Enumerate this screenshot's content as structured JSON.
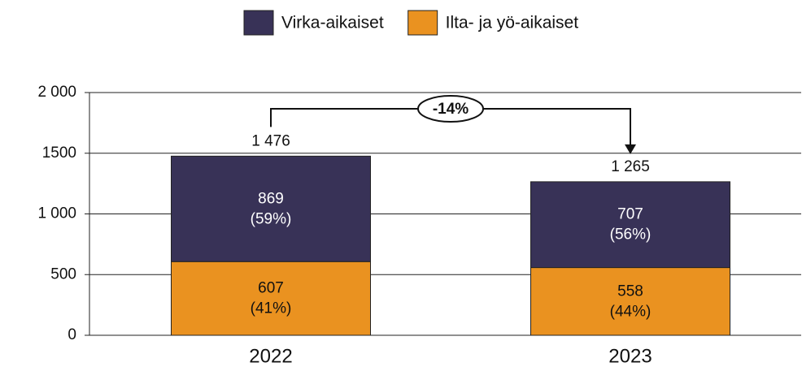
{
  "chart_data": {
    "type": "stacked_bar",
    "categories": [
      "2022",
      "2023"
    ],
    "series": [
      {
        "name": "Virka-aikaiset",
        "color": "#383257",
        "values": [
          869,
          707
        ],
        "percent_labels": [
          "(59%)",
          "(56%)"
        ]
      },
      {
        "name": "Ilta- ja yö-aikaiset",
        "color": "#ea9220",
        "values": [
          607,
          558
        ],
        "percent_labels": [
          "(41%)",
          "(44%)"
        ]
      }
    ],
    "totals": [
      1476,
      1265
    ],
    "total_labels": [
      "1 476",
      "1 265"
    ],
    "annotation": "-14%",
    "ylim": [
      0,
      2000
    ],
    "yticks": [
      0,
      500,
      {
        "value": 1000,
        "label": "1 000"
      },
      1500,
      {
        "value": 2000,
        "label": "2 000"
      }
    ],
    "grid": true
  }
}
